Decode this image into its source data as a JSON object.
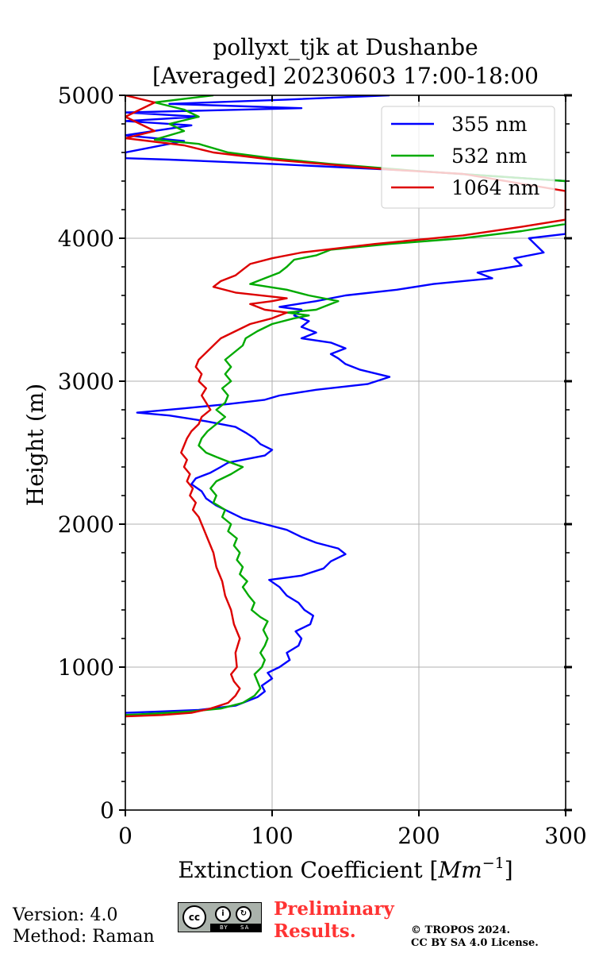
{
  "chart_data": {
    "type": "line",
    "title": [
      "pollyxt_tjk at Dushanbe",
      "[Averaged] 20230603 17:00-18:00"
    ],
    "xlabel_text": "Extinction Coefficient [",
    "xlabel_math": "Mm",
    "xlabel_exp": "−1",
    "xlabel_close": "]",
    "ylabel": "Height (m)",
    "xlim": [
      0,
      300
    ],
    "ylim": [
      0,
      5000
    ],
    "x_ticks": [
      0,
      100,
      200,
      300
    ],
    "y_ticks": [
      0,
      1000,
      2000,
      3000,
      4000,
      5000
    ],
    "grid": true,
    "legend_position": "top-right",
    "series": [
      {
        "name": "355 nm",
        "color": "#0000ff",
        "points": [
          [
            0,
            680
          ],
          [
            25,
            690
          ],
          [
            50,
            700
          ],
          [
            75,
            730
          ],
          [
            90,
            790
          ],
          [
            95,
            830
          ],
          [
            93,
            870
          ],
          [
            100,
            920
          ],
          [
            97,
            960
          ],
          [
            105,
            1000
          ],
          [
            112,
            1050
          ],
          [
            110,
            1100
          ],
          [
            118,
            1150
          ],
          [
            120,
            1200
          ],
          [
            116,
            1250
          ],
          [
            126,
            1300
          ],
          [
            128,
            1360
          ],
          [
            122,
            1400
          ],
          [
            118,
            1450
          ],
          [
            110,
            1500
          ],
          [
            105,
            1560
          ],
          [
            98,
            1610
          ],
          [
            120,
            1640
          ],
          [
            135,
            1690
          ],
          [
            140,
            1740
          ],
          [
            150,
            1790
          ],
          [
            145,
            1830
          ],
          [
            130,
            1870
          ],
          [
            120,
            1910
          ],
          [
            110,
            1960
          ],
          [
            95,
            2000
          ],
          [
            80,
            2040
          ],
          [
            72,
            2080
          ],
          [
            62,
            2130
          ],
          [
            55,
            2180
          ],
          [
            52,
            2230
          ],
          [
            45,
            2280
          ],
          [
            48,
            2320
          ],
          [
            58,
            2360
          ],
          [
            65,
            2400
          ],
          [
            70,
            2430
          ],
          [
            85,
            2460
          ],
          [
            95,
            2480
          ],
          [
            100,
            2520
          ],
          [
            92,
            2560
          ],
          [
            88,
            2600
          ],
          [
            82,
            2640
          ],
          [
            75,
            2680
          ],
          [
            55,
            2720
          ],
          [
            30,
            2760
          ],
          [
            8,
            2780
          ],
          [
            40,
            2810
          ],
          [
            70,
            2840
          ],
          [
            95,
            2870
          ],
          [
            105,
            2900
          ],
          [
            130,
            2940
          ],
          [
            165,
            2980
          ],
          [
            180,
            3030
          ],
          [
            160,
            3080
          ],
          [
            150,
            3120
          ],
          [
            145,
            3160
          ],
          [
            140,
            3190
          ],
          [
            150,
            3230
          ],
          [
            140,
            3270
          ],
          [
            120,
            3300
          ],
          [
            130,
            3340
          ],
          [
            120,
            3380
          ],
          [
            125,
            3420
          ],
          [
            115,
            3460
          ],
          [
            120,
            3500
          ],
          [
            105,
            3520
          ],
          [
            130,
            3560
          ],
          [
            150,
            3600
          ],
          [
            185,
            3640
          ],
          [
            210,
            3680
          ],
          [
            250,
            3720
          ],
          [
            240,
            3760
          ],
          [
            270,
            3810
          ],
          [
            265,
            3860
          ],
          [
            285,
            3900
          ],
          [
            280,
            3950
          ],
          [
            275,
            4000
          ],
          [
            300,
            4030
          ],
          [
            300,
            4400
          ],
          [
            200,
            4470
          ],
          [
            100,
            4520
          ],
          [
            30,
            4550
          ],
          [
            0,
            4560
          ],
          [
            0,
            4600
          ],
          [
            40,
            4680
          ],
          [
            0,
            4720
          ],
          [
            45,
            4790
          ],
          [
            0,
            4820
          ],
          [
            50,
            4850
          ],
          [
            0,
            4880
          ],
          [
            120,
            4910
          ],
          [
            30,
            4940
          ],
          [
            110,
            4970
          ],
          [
            180,
            5000
          ]
        ]
      },
      {
        "name": "532 nm",
        "color": "#00aa00",
        "points": [
          [
            0,
            665
          ],
          [
            20,
            675
          ],
          [
            45,
            690
          ],
          [
            65,
            710
          ],
          [
            80,
            750
          ],
          [
            88,
            800
          ],
          [
            92,
            850
          ],
          [
            90,
            900
          ],
          [
            88,
            950
          ],
          [
            93,
            1000
          ],
          [
            95,
            1050
          ],
          [
            92,
            1100
          ],
          [
            95,
            1150
          ],
          [
            97,
            1200
          ],
          [
            94,
            1260
          ],
          [
            97,
            1320
          ],
          [
            92,
            1350
          ],
          [
            86,
            1400
          ],
          [
            88,
            1450
          ],
          [
            84,
            1500
          ],
          [
            80,
            1560
          ],
          [
            83,
            1600
          ],
          [
            78,
            1650
          ],
          [
            80,
            1700
          ],
          [
            76,
            1750
          ],
          [
            78,
            1800
          ],
          [
            74,
            1850
          ],
          [
            76,
            1900
          ],
          [
            70,
            1950
          ],
          [
            72,
            2000
          ],
          [
            66,
            2050
          ],
          [
            68,
            2100
          ],
          [
            60,
            2150
          ],
          [
            62,
            2200
          ],
          [
            58,
            2250
          ],
          [
            62,
            2300
          ],
          [
            72,
            2350
          ],
          [
            80,
            2400
          ],
          [
            72,
            2430
          ],
          [
            62,
            2470
          ],
          [
            55,
            2500
          ],
          [
            50,
            2550
          ],
          [
            52,
            2600
          ],
          [
            56,
            2650
          ],
          [
            62,
            2700
          ],
          [
            68,
            2750
          ],
          [
            62,
            2800
          ],
          [
            68,
            2850
          ],
          [
            70,
            2900
          ],
          [
            66,
            2950
          ],
          [
            72,
            3000
          ],
          [
            68,
            3050
          ],
          [
            72,
            3100
          ],
          [
            68,
            3150
          ],
          [
            74,
            3200
          ],
          [
            80,
            3250
          ],
          [
            82,
            3300
          ],
          [
            90,
            3350
          ],
          [
            100,
            3400
          ],
          [
            115,
            3440
          ],
          [
            125,
            3460
          ],
          [
            110,
            3480
          ],
          [
            130,
            3500
          ],
          [
            140,
            3540
          ],
          [
            145,
            3560
          ],
          [
            125,
            3600
          ],
          [
            110,
            3640
          ],
          [
            85,
            3680
          ],
          [
            95,
            3720
          ],
          [
            105,
            3760
          ],
          [
            110,
            3800
          ],
          [
            115,
            3850
          ],
          [
            130,
            3880
          ],
          [
            140,
            3920
          ],
          [
            180,
            3960
          ],
          [
            230,
            4000
          ],
          [
            270,
            4050
          ],
          [
            300,
            4100
          ],
          [
            300,
            4400
          ],
          [
            200,
            4470
          ],
          [
            140,
            4520
          ],
          [
            100,
            4560
          ],
          [
            70,
            4600
          ],
          [
            50,
            4660
          ],
          [
            20,
            4690
          ],
          [
            40,
            4750
          ],
          [
            30,
            4800
          ],
          [
            50,
            4850
          ],
          [
            40,
            4900
          ],
          [
            20,
            4950
          ],
          [
            60,
            5000
          ]
        ]
      },
      {
        "name": "1064 nm",
        "color": "#dd0000",
        "points": [
          [
            0,
            655
          ],
          [
            25,
            665
          ],
          [
            45,
            680
          ],
          [
            58,
            710
          ],
          [
            70,
            750
          ],
          [
            75,
            800
          ],
          [
            78,
            850
          ],
          [
            74,
            900
          ],
          [
            72,
            950
          ],
          [
            76,
            1000
          ],
          [
            75,
            1100
          ],
          [
            78,
            1200
          ],
          [
            74,
            1300
          ],
          [
            72,
            1400
          ],
          [
            68,
            1500
          ],
          [
            66,
            1600
          ],
          [
            62,
            1700
          ],
          [
            60,
            1800
          ],
          [
            56,
            1900
          ],
          [
            52,
            2000
          ],
          [
            50,
            2050
          ],
          [
            46,
            2100
          ],
          [
            48,
            2150
          ],
          [
            44,
            2200
          ],
          [
            46,
            2250
          ],
          [
            42,
            2300
          ],
          [
            44,
            2350
          ],
          [
            40,
            2400
          ],
          [
            42,
            2450
          ],
          [
            38,
            2500
          ],
          [
            40,
            2550
          ],
          [
            42,
            2600
          ],
          [
            45,
            2650
          ],
          [
            50,
            2700
          ],
          [
            52,
            2750
          ],
          [
            58,
            2800
          ],
          [
            55,
            2850
          ],
          [
            52,
            2900
          ],
          [
            55,
            2950
          ],
          [
            50,
            3000
          ],
          [
            52,
            3050
          ],
          [
            48,
            3100
          ],
          [
            50,
            3150
          ],
          [
            55,
            3200
          ],
          [
            60,
            3250
          ],
          [
            65,
            3300
          ],
          [
            75,
            3350
          ],
          [
            85,
            3400
          ],
          [
            100,
            3440
          ],
          [
            110,
            3480
          ],
          [
            95,
            3500
          ],
          [
            85,
            3540
          ],
          [
            100,
            3560
          ],
          [
            110,
            3580
          ],
          [
            75,
            3620
          ],
          [
            60,
            3660
          ],
          [
            65,
            3700
          ],
          [
            75,
            3740
          ],
          [
            80,
            3780
          ],
          [
            85,
            3820
          ],
          [
            100,
            3860
          ],
          [
            120,
            3900
          ],
          [
            170,
            3960
          ],
          [
            230,
            4020
          ],
          [
            270,
            4080
          ],
          [
            300,
            4130
          ],
          [
            300,
            4330
          ],
          [
            230,
            4450
          ],
          [
            180,
            4480
          ],
          [
            100,
            4550
          ],
          [
            60,
            4600
          ],
          [
            40,
            4650
          ],
          [
            0,
            4700
          ],
          [
            20,
            4750
          ],
          [
            10,
            4800
          ],
          [
            0,
            4850
          ],
          [
            10,
            4900
          ],
          [
            20,
            4950
          ],
          [
            0,
            5000
          ]
        ]
      }
    ]
  },
  "footer": {
    "version": "Version: 4.0",
    "method": "Method: Raman",
    "preliminary_1": "Preliminary",
    "preliminary_2": "Results.",
    "copyright_1": "© TROPOS 2024.",
    "copyright_2": "CC BY SA 4.0 License.",
    "badge_cc": "cc",
    "badge_by": "BY",
    "badge_sa": "SA"
  }
}
